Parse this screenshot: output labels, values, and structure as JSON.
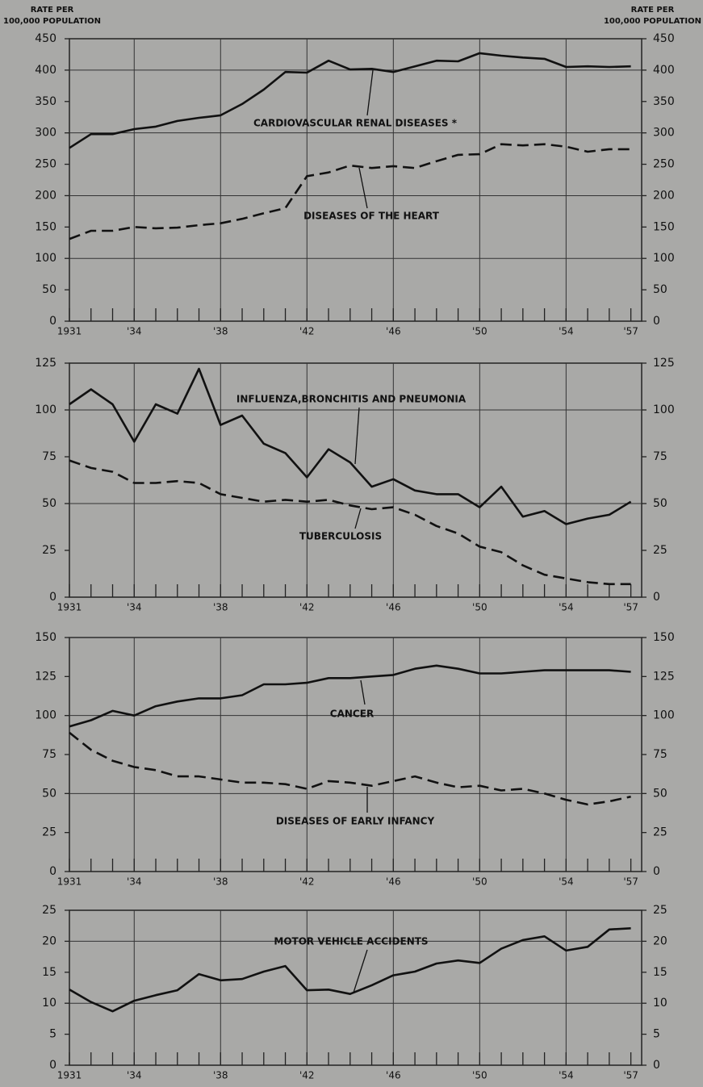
{
  "chart_data": [
    {
      "type": "line",
      "ylabel": "RATE PER\n100,000 POPULATION",
      "y2label": "RATE PER\n100,000 POPULATION",
      "x": [
        1931,
        1932,
        1933,
        1934,
        1935,
        1936,
        1937,
        1938,
        1939,
        1940,
        1941,
        1942,
        1943,
        1944,
        1945,
        1946,
        1947,
        1948,
        1949,
        1950,
        1951,
        1952,
        1953,
        1954,
        1955,
        1956,
        1957
      ],
      "xlim": [
        1931,
        1957.5
      ],
      "xticks": [
        1931,
        {
          "value": 1934,
          "label": "'34"
        },
        {
          "value": 1938,
          "label": "'38"
        },
        {
          "value": 1942,
          "label": "'42"
        },
        {
          "value": 1946,
          "label": "'46"
        },
        {
          "value": 1950,
          "label": "'50"
        },
        {
          "value": 1954,
          "label": "'54"
        },
        {
          "value": 1957,
          "label": "'57"
        }
      ],
      "ylim": [
        0,
        450
      ],
      "yticks": [
        0,
        50,
        100,
        150,
        200,
        250,
        300,
        350,
        400,
        450
      ],
      "grid": true,
      "series": [
        {
          "name": "CARDIOVASCULAR RENAL DISEASES *",
          "color": "#111111",
          "dash": "solid",
          "values": [
            276,
            298,
            298,
            306,
            310,
            319,
            324,
            328,
            346,
            369,
            397,
            396,
            415,
            401,
            402,
            397,
            406,
            415,
            414,
            427,
            423,
            420,
            418,
            405,
            406,
            405,
            406
          ]
        },
        {
          "name": "DISEASES OF THE HEART",
          "color": "#111111",
          "dash": "dashed",
          "values": [
            131,
            144,
            144,
            150,
            148,
            149,
            153,
            156,
            163,
            172,
            180,
            231,
            237,
            248,
            244,
            247,
            244,
            255,
            265,
            266,
            282,
            280,
            282,
            278,
            270,
            274,
            274
          ]
        }
      ]
    },
    {
      "type": "line",
      "x": [
        1931,
        1932,
        1933,
        1934,
        1935,
        1936,
        1937,
        1938,
        1939,
        1940,
        1941,
        1942,
        1943,
        1944,
        1945,
        1946,
        1947,
        1948,
        1949,
        1950,
        1951,
        1952,
        1953,
        1954,
        1955,
        1956,
        1957
      ],
      "xlim": [
        1931,
        1957.5
      ],
      "xticks": [
        1931,
        {
          "value": 1934,
          "label": "'34"
        },
        {
          "value": 1938,
          "label": "'38"
        },
        {
          "value": 1942,
          "label": "'42"
        },
        {
          "value": 1946,
          "label": "'46"
        },
        {
          "value": 1950,
          "label": "'50"
        },
        {
          "value": 1954,
          "label": "'54"
        },
        {
          "value": 1957,
          "label": "'57"
        }
      ],
      "ylim": [
        0,
        125
      ],
      "yticks": [
        0,
        25,
        50,
        75,
        100,
        125
      ],
      "grid": true,
      "series": [
        {
          "name": "INFLUENZA,BRONCHITIS AND PNEUMONIA",
          "color": "#111111",
          "dash": "solid",
          "values": [
            103,
            111,
            103,
            83,
            103,
            98,
            122,
            92,
            97,
            82,
            77,
            64,
            79,
            72,
            59,
            63,
            57,
            55,
            55,
            48,
            59,
            43,
            46,
            39,
            42,
            44,
            51
          ]
        },
        {
          "name": "TUBERCULOSIS",
          "color": "#111111",
          "dash": "dashed",
          "values": [
            73,
            69,
            67,
            61,
            61,
            62,
            61,
            55,
            53,
            51,
            52,
            51,
            52,
            49,
            47,
            48,
            44,
            38,
            34,
            27,
            24,
            17,
            12,
            10,
            8,
            7,
            7
          ]
        }
      ]
    },
    {
      "type": "line",
      "x": [
        1931,
        1932,
        1933,
        1934,
        1935,
        1936,
        1937,
        1938,
        1939,
        1940,
        1941,
        1942,
        1943,
        1944,
        1945,
        1946,
        1947,
        1948,
        1949,
        1950,
        1951,
        1952,
        1953,
        1954,
        1955,
        1956,
        1957
      ],
      "xlim": [
        1931,
        1957.5
      ],
      "xticks": [
        1931,
        {
          "value": 1934,
          "label": "'34"
        },
        {
          "value": 1938,
          "label": "'38"
        },
        {
          "value": 1942,
          "label": "'42"
        },
        {
          "value": 1946,
          "label": "'46"
        },
        {
          "value": 1950,
          "label": "'50"
        },
        {
          "value": 1954,
          "label": "'54"
        },
        {
          "value": 1957,
          "label": "'57"
        }
      ],
      "ylim": [
        0,
        150
      ],
      "yticks": [
        0,
        25,
        50,
        75,
        100,
        125,
        150
      ],
      "grid": true,
      "series": [
        {
          "name": "CANCER",
          "color": "#111111",
          "dash": "solid",
          "values": [
            93,
            97,
            103,
            100,
            106,
            109,
            111,
            111,
            113,
            120,
            120,
            121,
            124,
            124,
            125,
            126,
            130,
            132,
            130,
            127,
            127,
            128,
            129,
            129,
            129,
            129,
            128
          ]
        },
        {
          "name": "DISEASES OF EARLY INFANCY",
          "color": "#111111",
          "dash": "dashed",
          "values": [
            89,
            78,
            71,
            67,
            65,
            61,
            61,
            59,
            57,
            57,
            56,
            53,
            58,
            57,
            55,
            58,
            61,
            57,
            54,
            55,
            52,
            53,
            50,
            46,
            43,
            45,
            48
          ]
        }
      ]
    },
    {
      "type": "line",
      "x": [
        1931,
        1932,
        1933,
        1934,
        1935,
        1936,
        1937,
        1938,
        1939,
        1940,
        1941,
        1942,
        1943,
        1944,
        1945,
        1946,
        1947,
        1948,
        1949,
        1950,
        1951,
        1952,
        1953,
        1954,
        1955,
        1956,
        1957
      ],
      "xlim": [
        1931,
        1957.5
      ],
      "xticks": [
        1931,
        {
          "value": 1934,
          "label": "'34"
        },
        {
          "value": 1938,
          "label": "'38"
        },
        {
          "value": 1942,
          "label": "'42"
        },
        {
          "value": 1946,
          "label": "'46"
        },
        {
          "value": 1950,
          "label": "'50"
        },
        {
          "value": 1954,
          "label": "'54"
        },
        {
          "value": 1957,
          "label": "'57"
        }
      ],
      "ylim": [
        0,
        25
      ],
      "yticks": [
        0,
        5,
        10,
        15,
        20,
        25
      ],
      "grid": true,
      "series": [
        {
          "name": "MOTOR VEHICLE ACCIDENTS",
          "color": "#111111",
          "dash": "solid",
          "values": [
            12.2,
            10.2,
            8.7,
            10.4,
            11.3,
            12.1,
            14.7,
            13.7,
            13.9,
            15.1,
            16.0,
            12.1,
            12.2,
            11.5,
            12.9,
            14.5,
            15.1,
            16.4,
            16.9,
            16.5,
            18.8,
            20.2,
            20.8,
            18.5,
            19.1,
            21.9,
            22.1
          ]
        }
      ]
    }
  ]
}
